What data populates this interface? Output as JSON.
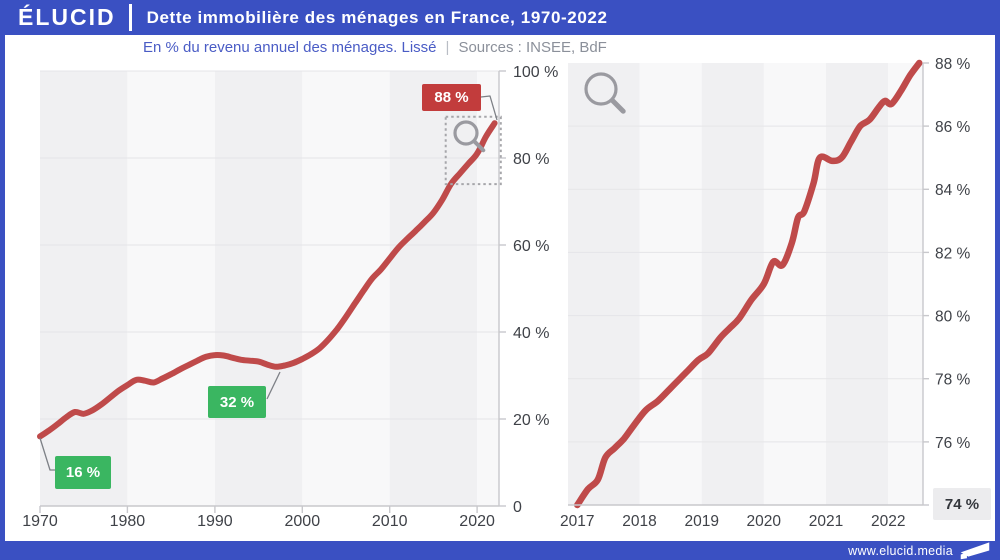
{
  "header": {
    "brand": "ÉLUCID",
    "title": "Dette immobilière des ménages en France, 1970-2022"
  },
  "subtitle": {
    "main": "En % du revenu annuel des ménages. Lissé",
    "separator": "|",
    "sources": "Sources : INSEE, BdF"
  },
  "footer": {
    "url": "www.elucid.media",
    "logo_icon": "elucid-flag-icon"
  },
  "colors": {
    "frame_blue": "#3a50c2",
    "subtitle_blue": "#4a5cc5",
    "muted_gray": "#8b909a",
    "line_red": "#bf4a4a",
    "badge_red_bg": "#c23c3c",
    "badge_green_bg": "#3ab661",
    "badge_gray_bg": "#ececee",
    "band_dark": "#f0f0f2",
    "band_light": "#f8f8f9",
    "gridline": "#e5e5e8",
    "axis": "#c8c8cc",
    "tick_label": "#3f4248",
    "callout": "#7d8086",
    "magnifier": "#9a9aa0",
    "zoom_box": "#a6a6aa"
  },
  "chart_data": [
    {
      "id": "households-housing-debt-1970-2022",
      "type": "line",
      "title": "Dette immobilière des ménages en France, 1970-2022",
      "ylabel": "En % du revenu annuel des ménages (lissé)",
      "x": [
        1970,
        1971,
        1972,
        1973,
        1974,
        1975,
        1976,
        1977,
        1978,
        1979,
        1980,
        1981,
        1982,
        1983,
        1984,
        1985,
        1986,
        1987,
        1988,
        1989,
        1990,
        1991,
        1992,
        1993,
        1994,
        1995,
        1996,
        1997,
        1998,
        1999,
        2000,
        2001,
        2002,
        2003,
        2004,
        2005,
        2006,
        2007,
        2008,
        2009,
        2010,
        2011,
        2012,
        2013,
        2014,
        2015,
        2016,
        2017,
        2018,
        2019,
        2020,
        2021,
        2022
      ],
      "values": [
        16,
        17.3,
        18.8,
        20.4,
        21.6,
        21.2,
        22,
        23.3,
        24.9,
        26.5,
        27.8,
        29,
        28.8,
        28.4,
        29.3,
        30.3,
        31.4,
        32.4,
        33.4,
        34.3,
        34.7,
        34.6,
        34.1,
        33.6,
        33.4,
        33.2,
        32.5,
        32,
        32.3,
        32.9,
        33.8,
        34.9,
        36.3,
        38.3,
        40.7,
        43.5,
        46.5,
        49.5,
        52.3,
        54.4,
        56.9,
        59.4,
        61.4,
        63.3,
        65.3,
        67.4,
        70.4,
        74,
        76.4,
        78.7,
        81,
        84.9,
        88
      ],
      "xlim": [
        1970,
        2022.5
      ],
      "ylim": [
        0,
        100
      ],
      "xticks": [
        1970,
        1980,
        1990,
        2000,
        2010,
        2020
      ],
      "xtick_labels": [
        "1970",
        "1980",
        "1990",
        "2000",
        "2010",
        "2020"
      ],
      "yticks": [
        0,
        20,
        40,
        60,
        80,
        100
      ],
      "ytick_labels": [
        "0",
        "20 %",
        "40 %",
        "60 %",
        "80 %",
        "100 %"
      ],
      "grid": "horizontal",
      "legend": "none",
      "line_color": "#bf4a4a",
      "annotations": [
        {
          "label": "16 %",
          "x": 1970,
          "y": 16,
          "style": "green"
        },
        {
          "label": "32 %",
          "x": 1997,
          "y": 32,
          "style": "green"
        },
        {
          "label": "88 %",
          "x": 2022.4,
          "y": 88,
          "style": "red"
        }
      ],
      "zoom_region": {
        "x0": 2016.4,
        "x1": 2022.7,
        "y0": 74,
        "y1": 89.5
      }
    },
    {
      "id": "households-housing-debt-2017-2022-zoom",
      "type": "line",
      "title": "Zoom 2017-2022",
      "x": [
        2017,
        2017.17,
        2017.33,
        2017.45,
        2017.6,
        2017.75,
        2017.9,
        2018.1,
        2018.3,
        2018.5,
        2018.75,
        2018.95,
        2019.1,
        2019.3,
        2019.45,
        2019.6,
        2019.8,
        2020,
        2020.15,
        2020.3,
        2020.45,
        2020.55,
        2020.65,
        2020.8,
        2020.9,
        2021.1,
        2021.25,
        2021.4,
        2021.55,
        2021.7,
        2021.85,
        2021.95,
        2022.05,
        2022.2,
        2022.35,
        2022.5
      ],
      "values": [
        74,
        74.5,
        74.8,
        75.5,
        75.8,
        76.1,
        76.5,
        77,
        77.3,
        77.7,
        78.2,
        78.6,
        78.8,
        79.3,
        79.6,
        79.9,
        80.5,
        81,
        81.7,
        81.6,
        82.3,
        83.1,
        83.3,
        84.2,
        85,
        84.9,
        85,
        85.5,
        86,
        86.2,
        86.6,
        86.8,
        86.7,
        87.1,
        87.6,
        88
      ],
      "xlim": [
        2016.85,
        2022.56
      ],
      "ylim": [
        74,
        88
      ],
      "xticks": [
        2017,
        2018,
        2019,
        2020,
        2021,
        2022
      ],
      "xtick_labels": [
        "2017",
        "2018",
        "2019",
        "2020",
        "2021",
        "2022"
      ],
      "yticks": [
        74,
        76,
        78,
        80,
        82,
        84,
        86,
        88
      ],
      "ytick_labels": [
        "74 %",
        "76 %",
        "78 %",
        "80 %",
        "82 %",
        "84 %",
        "86 %",
        "88 %"
      ],
      "grid": "horizontal",
      "legend": "none",
      "line_color": "#bf4a4a",
      "annotations": [
        {
          "label": "74 %",
          "x": 2017,
          "y": 74,
          "style": "gray"
        }
      ]
    }
  ]
}
